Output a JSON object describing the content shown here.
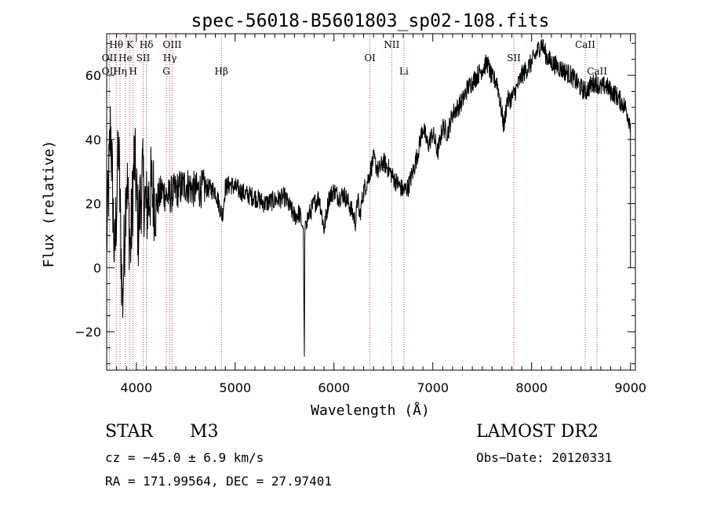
{
  "chart_data": {
    "type": "line",
    "title": "spec-56018-B5601803_sp02-108.fits",
    "xlabel": "Wavelength (Å)",
    "ylabel": "Flux (relative)",
    "xlim": [
      3700,
      9050
    ],
    "ylim": [
      -32,
      73
    ],
    "xticks": [
      4000,
      5000,
      6000,
      7000,
      8000,
      9000
    ],
    "yticks": [
      -20,
      0,
      20,
      40,
      60
    ],
    "grid": false,
    "series": [
      {
        "color": "#000000",
        "x": [
          3700,
          3740,
          3780,
          3820,
          3860,
          3900,
          3940,
          3980,
          4020,
          4060,
          4100,
          4150,
          4200,
          4260,
          4320,
          4400,
          4500,
          4600,
          4700,
          4800,
          4870,
          4900,
          4950,
          5000,
          5100,
          5200,
          5300,
          5400,
          5500,
          5600,
          5650,
          5690,
          5700,
          5705,
          5710,
          5740,
          5800,
          5850,
          5900,
          5950,
          6000,
          6050,
          6100,
          6150,
          6200,
          6220,
          6240,
          6260,
          6300,
          6350,
          6400,
          6450,
          6500,
          6550,
          6600,
          6650,
          6700,
          6750,
          6800,
          6850,
          6900,
          6950,
          7000,
          7050,
          7100,
          7150,
          7200,
          7250,
          7300,
          7350,
          7400,
          7450,
          7500,
          7550,
          7600,
          7650,
          7700,
          7720,
          7750,
          7800,
          7850,
          7900,
          7950,
          8000,
          8050,
          8100,
          8150,
          8200,
          8250,
          8300,
          8350,
          8400,
          8450,
          8500,
          8550,
          8600,
          8650,
          8700,
          8750,
          8800,
          8850,
          8900,
          8950,
          9000
        ],
        "y": [
          8,
          45,
          2,
          38,
          -12,
          30,
          5,
          35,
          12,
          28,
          18,
          25,
          20,
          24,
          22,
          24,
          26,
          24,
          25,
          24,
          16,
          25,
          26,
          25,
          23,
          22,
          20,
          21,
          22,
          16,
          17,
          12,
          -28,
          10,
          14,
          16,
          20,
          22,
          12,
          22,
          24,
          22,
          23,
          20,
          16,
          14,
          22,
          16,
          24,
          28,
          34,
          30,
          33,
          31,
          28,
          26,
          24,
          25,
          30,
          36,
          44,
          38,
          42,
          36,
          44,
          42,
          48,
          50,
          52,
          56,
          58,
          60,
          62,
          64,
          59,
          58,
          48,
          44,
          52,
          53,
          56,
          60,
          62,
          64,
          67,
          70,
          66,
          64,
          63,
          62,
          61,
          60,
          58,
          56,
          55,
          57,
          58,
          56,
          57,
          55,
          54,
          52,
          50,
          45
        ]
      }
    ],
    "annotations": [
      {
        "label": "Hθ",
        "x": 3797,
        "row": 1
      },
      {
        "label": "OII",
        "x": 3727,
        "row": 2
      },
      {
        "label": "OII",
        "x": 3727,
        "row": 3
      },
      {
        "label": "He",
        "x": 3889,
        "row": 2
      },
      {
        "label": "Hη",
        "x": 3835,
        "row": 3
      },
      {
        "label": "K",
        "x": 3934,
        "row": 1
      },
      {
        "label": "H",
        "x": 3968,
        "row": 3
      },
      {
        "label": "Hδ",
        "x": 4102,
        "row": 1
      },
      {
        "label": "SII",
        "x": 4069,
        "row": 2
      },
      {
        "label": "OIII",
        "x": 4363,
        "row": 1
      },
      {
        "label": "Hγ",
        "x": 4340,
        "row": 2
      },
      {
        "label": "G",
        "x": 4304,
        "row": 3
      },
      {
        "label": "Hβ",
        "x": 4861,
        "row": 3
      },
      {
        "label": "OI",
        "x": 6364,
        "row": 2
      },
      {
        "label": "NII",
        "x": 6584,
        "row": 1
      },
      {
        "label": "Li",
        "x": 6708,
        "row": 3
      },
      {
        "label": "SII",
        "x": 7820,
        "row": 2
      },
      {
        "label": "CaII",
        "x": 8542,
        "row": 1
      },
      {
        "label": "CaII",
        "x": 8662,
        "row": 3
      }
    ]
  },
  "info": {
    "object_class": "STAR",
    "subclass": "M3",
    "survey": "LAMOST DR2",
    "redshift": "cz = −45.0 ± 6.9 km/s",
    "obs_date": "Obs−Date: 20120331",
    "coords": "RA = 171.99564, DEC =  27.97401"
  }
}
